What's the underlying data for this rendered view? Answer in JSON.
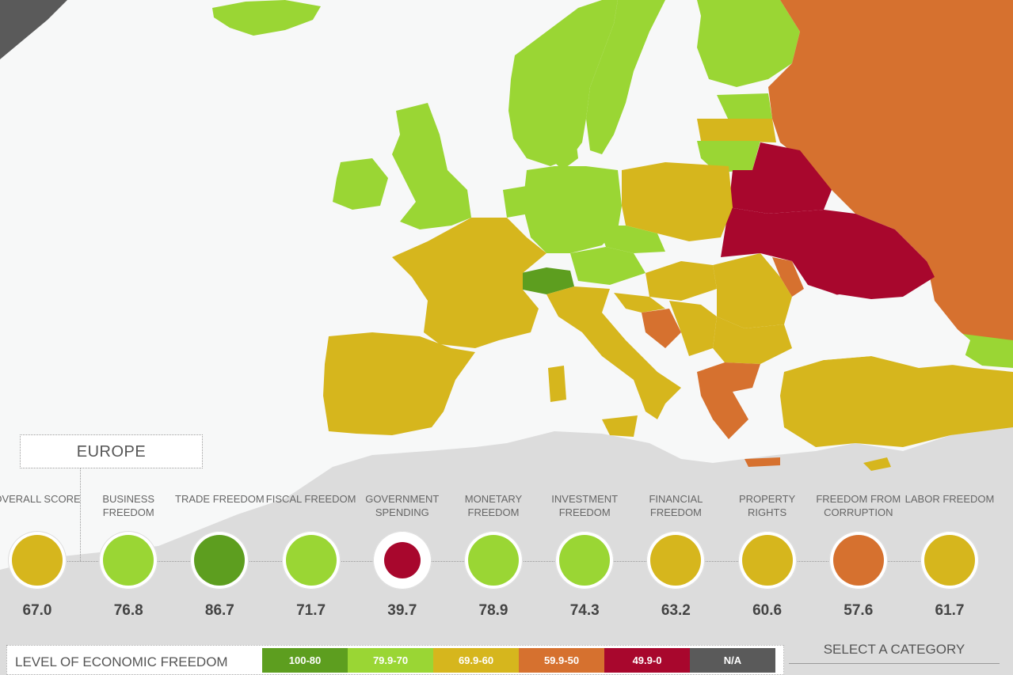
{
  "region": {
    "label": "EUROPE"
  },
  "colors": {
    "band_100_80": "#5d9e1f",
    "band_79_70": "#9ad634",
    "band_69_60": "#d6b61d",
    "band_59_50": "#d6712f",
    "band_49_0": "#a8072d",
    "band_na": "#5a5a5a",
    "sea": "#f7f8f8",
    "other_land": "#dcdcdc"
  },
  "categories": [
    {
      "label": "OVERALL SCORE",
      "score": "67.0",
      "color": "#d6b61d"
    },
    {
      "label": "BUSINESS FREEDOM",
      "score": "76.8",
      "color": "#9ad634"
    },
    {
      "label": "TRADE FREEDOM",
      "score": "86.7",
      "color": "#5d9e1f"
    },
    {
      "label": "FISCAL FREEDOM",
      "score": "71.7",
      "color": "#9ad634"
    },
    {
      "label": "GOVERNMENT SPENDING",
      "score": "39.7",
      "color": "#a8072d"
    },
    {
      "label": "MONETARY FREEDOM",
      "score": "78.9",
      "color": "#9ad634"
    },
    {
      "label": "INVESTMENT FREEDOM",
      "score": "74.3",
      "color": "#9ad634"
    },
    {
      "label": "FINANCIAL FREEDOM",
      "score": "63.2",
      "color": "#d6b61d"
    },
    {
      "label": "PROPERTY RIGHTS",
      "score": "60.6",
      "color": "#d6b61d"
    },
    {
      "label": "FREEDOM FROM CORRUPTION",
      "score": "57.6",
      "color": "#d6712f"
    },
    {
      "label": "LABOR FREEDOM",
      "score": "61.7",
      "color": "#d6b61d"
    }
  ],
  "legend": {
    "title": "LEVEL OF ECONOMIC FREEDOM",
    "bands": [
      {
        "label": "100-80",
        "color": "#5d9e1f"
      },
      {
        "label": "79.9-70",
        "color": "#9ad634"
      },
      {
        "label": "69.9-60",
        "color": "#d6b61d"
      },
      {
        "label": "59.9-50",
        "color": "#d6712f"
      },
      {
        "label": "49.9-0",
        "color": "#a8072d"
      },
      {
        "label": "N/A",
        "color": "#5a5a5a"
      }
    ]
  },
  "select_category": {
    "label": "SELECT A CATEGORY"
  }
}
